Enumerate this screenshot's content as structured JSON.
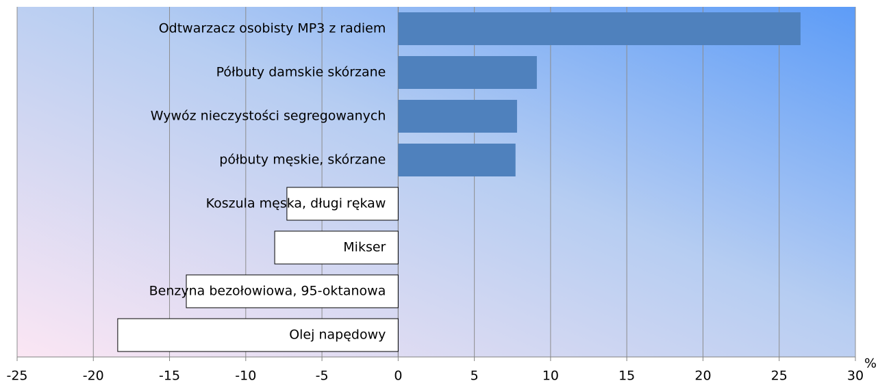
{
  "chart_data": {
    "type": "bar",
    "orientation": "horizontal",
    "categories": [
      "Odtwarzacz osobisty MP3 z radiem",
      "Półbuty damskie skórzane",
      "Wywóz nieczystości segregowanych",
      "półbuty męskie, skórzane",
      "Koszula męska, długi rękaw",
      "Mikser",
      "Benzyna bezołowiowa, 95-oktanowa",
      "Olej napędowy"
    ],
    "values": [
      26.4,
      9.1,
      7.8,
      7.7,
      -7.3,
      -8.1,
      -13.9,
      -18.4
    ],
    "color": "#4f81bd",
    "negative_color": "#ffffff",
    "x_label": "%",
    "xlim": [
      -25,
      30
    ],
    "xticks": [
      -25,
      -20,
      -15,
      -10,
      -5,
      0,
      5,
      10,
      15,
      20,
      25,
      30
    ],
    "grid": true
  }
}
